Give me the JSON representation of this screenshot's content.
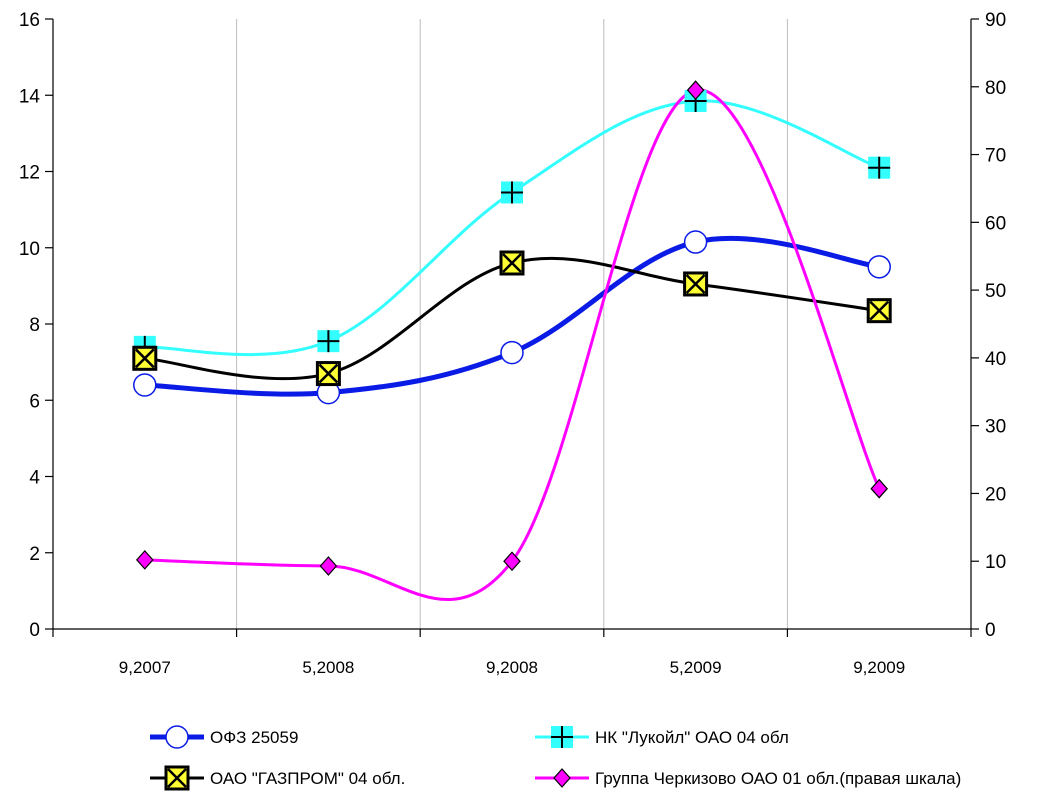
{
  "chart_data": {
    "type": "line",
    "categories": [
      "9,2007",
      "5,2008",
      "9,2008",
      "5,2009",
      "9,2009"
    ],
    "y_left": {
      "min": 0,
      "max": 16,
      "step": 2,
      "ticks": [
        "0",
        "2",
        "4",
        "6",
        "8",
        "10",
        "12",
        "14",
        "16"
      ]
    },
    "y_right": {
      "min": 0,
      "max": 90,
      "step": 10,
      "ticks": [
        "0",
        "10",
        "20",
        "30",
        "40",
        "50",
        "60",
        "70",
        "80",
        "90"
      ]
    },
    "grid": {
      "vertical": true,
      "horizontal": false
    },
    "legend_position": "bottom",
    "series": [
      {
        "name": "ОФЗ 25059",
        "axis": "left",
        "color": "#0a1be6",
        "marker": "circle",
        "marker_fill": "#ffffff",
        "values": [
          6.4,
          6.2,
          7.25,
          10.15,
          9.5
        ]
      },
      {
        "name": "НК \"Лукойл\" ОАО 04 обл",
        "axis": "left",
        "color": "#33ffff",
        "marker": "plus-square",
        "marker_fill": "#33ffff",
        "values": [
          7.4,
          7.55,
          11.45,
          13.85,
          12.1
        ]
      },
      {
        "name": "ОАО \"ГАЗПРОМ\" 04 обл.",
        "axis": "left",
        "color": "#000000",
        "marker": "x-square",
        "marker_fill": "#ffff33",
        "values": [
          7.1,
          6.7,
          9.6,
          9.05,
          8.35
        ]
      },
      {
        "name": "Группа Черкизово ОАО 01 обл.(правая шкала)",
        "axis": "right",
        "color": "#ff00ff",
        "marker": "diamond",
        "marker_fill": "#ff00ff",
        "values": [
          10.2,
          9.3,
          10,
          79.5,
          20.7
        ]
      }
    ]
  }
}
